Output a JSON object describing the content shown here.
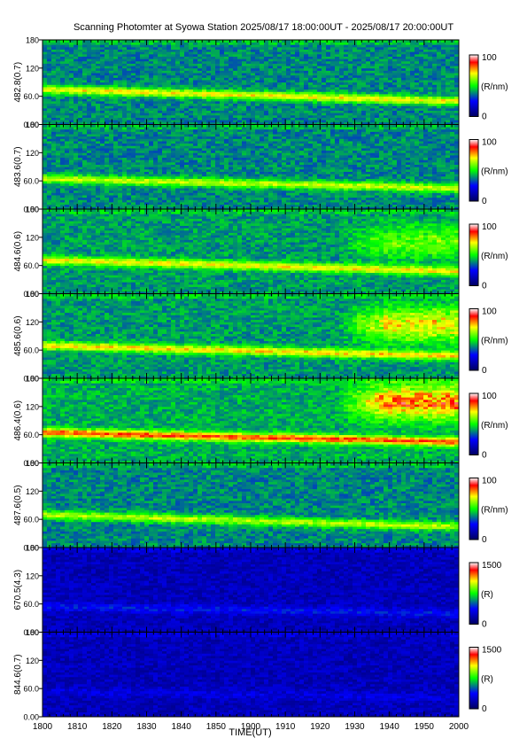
{
  "title": "Scanning Photomter at Syowa Station 2025/08/17 18:00:00UT - 2025/08/17 20:00:00UT",
  "chart_data": {
    "type": "heatmap",
    "title": "Scanning Photomter at Syowa Station 2025/08/17 18:00:00UT - 2025/08/17 20:00:00UT",
    "xlabel": "TIME(UT)",
    "x_ticks": [
      "1800",
      "1810",
      "1820",
      "1830",
      "1840",
      "1850",
      "1900",
      "1910",
      "1920",
      "1930",
      "1940",
      "1950",
      "2000"
    ],
    "y_ticks": [
      "0.00",
      "60.0",
      "120",
      "180"
    ],
    "ylim": [
      0,
      180
    ],
    "colormap": [
      "#000060",
      "#0000ff",
      "#00ff00",
      "#ffff00",
      "#ff0000",
      "#ffffff"
    ],
    "panels": [
      {
        "ylabel": "482.8(0.7)",
        "cbar_max": "100",
        "cbar_min": "0",
        "cbar_unit": "(R/nm)",
        "base": 0.38,
        "band_y": [
          75,
          50
        ],
        "band_intensity": 0.32,
        "aurora": null
      },
      {
        "ylabel": "483.6(0.7)",
        "cbar_max": "100",
        "cbar_min": "0",
        "cbar_unit": "(R/nm)",
        "base": 0.38,
        "band_y": [
          65,
          45
        ],
        "band_intensity": 0.28,
        "aurora": null
      },
      {
        "ylabel": "484.6(0.6)",
        "cbar_max": "100",
        "cbar_min": "0",
        "cbar_unit": "(R/nm)",
        "base": 0.4,
        "band_y": [
          72,
          48
        ],
        "band_intensity": 0.3,
        "aurora": {
          "x_start": 1925,
          "y_center": 110,
          "intensity": 0.18
        }
      },
      {
        "ylabel": "485.6(0.6)",
        "cbar_max": "100",
        "cbar_min": "0",
        "cbar_unit": "(R/nm)",
        "base": 0.4,
        "band_y": [
          70,
          48
        ],
        "band_intensity": 0.32,
        "aurora": {
          "x_start": 1925,
          "y_center": 115,
          "intensity": 0.32
        }
      },
      {
        "ylabel": "486.4(0.6)",
        "cbar_max": "100",
        "cbar_min": "0",
        "cbar_unit": "(R/nm)",
        "base": 0.42,
        "band_y": [
          65,
          45
        ],
        "band_intensity": 0.42,
        "aurora": {
          "x_start": 1925,
          "y_center": 130,
          "intensity": 0.4
        }
      },
      {
        "ylabel": "487.6(0.5)",
        "cbar_max": "100",
        "cbar_min": "0",
        "cbar_unit": "(R/nm)",
        "base": 0.38,
        "band_y": [
          70,
          45
        ],
        "band_intensity": 0.26,
        "aurora": null
      },
      {
        "ylabel": "670.5(4.3)",
        "cbar_max": "1500",
        "cbar_min": "0",
        "cbar_unit": "(R)",
        "base": 0.14,
        "band_y": [
          55,
          40
        ],
        "band_intensity": 0.12,
        "aurora": null
      },
      {
        "ylabel": "844.6(0.7)",
        "cbar_max": "1500",
        "cbar_min": "0",
        "cbar_unit": "(R)",
        "base": 0.14,
        "band_y": [
          55,
          40
        ],
        "band_intensity": 0.06,
        "aurora": null
      }
    ]
  }
}
